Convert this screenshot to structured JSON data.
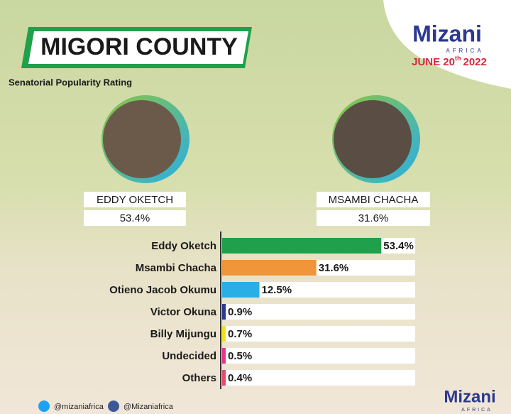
{
  "chart_data": {
    "type": "bar",
    "title": "MIGORI COUNTY",
    "subtitle": "Senatorial Popularity Rating",
    "categories": [
      "Eddy Oketch",
      "Msambi Chacha",
      "Otieno Jacob Okumu",
      "Victor Okuna",
      "Billy Mijungu",
      "Undecided",
      "Others"
    ],
    "values": [
      53.4,
      31.6,
      12.5,
      0.9,
      0.7,
      0.5,
      0.4
    ],
    "value_labels": [
      "53.4%",
      "31.6%",
      "12.5%",
      "0.9%",
      "0.7%",
      "0.5%",
      "0.4%"
    ],
    "colors": [
      "#1fa04a",
      "#f0953a",
      "#29aee6",
      "#2b3990",
      "#f5e01c",
      "#e8358a",
      "#e84a6a"
    ]
  },
  "brand": {
    "name": "Mizani",
    "region": "AFRICA",
    "date": {
      "day": "JUNE 20",
      "suffix": "th",
      "year": "2022"
    }
  },
  "candidates": [
    {
      "name": "EDDY OKETCH",
      "rating": "53.4%"
    },
    {
      "name": "MSAMBI CHACHA",
      "rating": "31.6%"
    }
  ],
  "footer": {
    "twitter": "@mizaniafrica",
    "facebook": "@Mizaniafrica"
  }
}
